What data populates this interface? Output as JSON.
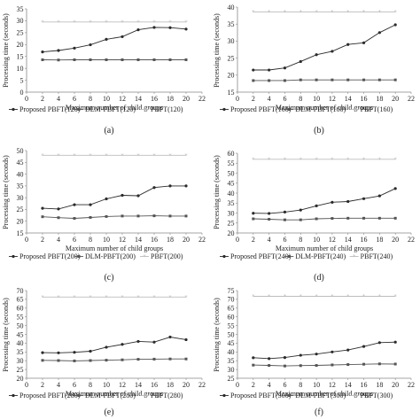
{
  "colors": {
    "proposed": "#2b2b2b",
    "dlm": "#555555",
    "pbft": "#bdbdbd",
    "axis": "#888888",
    "text": "#222222"
  },
  "chart_data": [
    {
      "type": "line",
      "caption": "(a)",
      "xlabel": "Maximum number of child groups",
      "ylabel": "Processing time (seconds)",
      "xlim": [
        0,
        22
      ],
      "ylim": [
        0,
        35
      ],
      "xticks": [
        0,
        2,
        4,
        6,
        8,
        10,
        12,
        14,
        16,
        18,
        20,
        22
      ],
      "yticks": [
        0,
        5,
        10,
        15,
        20,
        25,
        30,
        35
      ],
      "grid": false,
      "legend_position": "bottom",
      "x": [
        2,
        4,
        6,
        8,
        10,
        12,
        14,
        16,
        18,
        20
      ],
      "series": [
        {
          "name": "Proposed PBFT(120)",
          "values": [
            16.9,
            17.5,
            18.5,
            19.9,
            22.2,
            23.3,
            26.2,
            27.2,
            27.1,
            26.5
          ]
        },
        {
          "name": "DLM-PBFT(120)",
          "values": [
            13.6,
            13.5,
            13.6,
            13.6,
            13.6,
            13.6,
            13.6,
            13.6,
            13.6,
            13.6
          ]
        },
        {
          "name": "PBFT(120)",
          "values": [
            29.5,
            29.5,
            29.5,
            29.5,
            29.5,
            29.5,
            29.5,
            29.5,
            29.5,
            29.5
          ]
        }
      ]
    },
    {
      "type": "line",
      "caption": "(b)",
      "xlabel": "Maximum number of child groups",
      "ylabel": "Processing time (seconds)",
      "xlim": [
        0,
        22
      ],
      "ylim": [
        15,
        40
      ],
      "xticks": [
        0,
        2,
        4,
        6,
        8,
        10,
        12,
        14,
        16,
        18,
        20,
        22
      ],
      "yticks": [
        15,
        20,
        25,
        30,
        35,
        40
      ],
      "grid": false,
      "legend_position": "bottom",
      "x": [
        2,
        4,
        6,
        8,
        10,
        12,
        14,
        16,
        18,
        20
      ],
      "series": [
        {
          "name": "Proposed PBFT(160)",
          "values": [
            21.5,
            21.5,
            22.1,
            24.0,
            26.0,
            27.0,
            29.0,
            29.5,
            32.5,
            34.8
          ]
        },
        {
          "name": "DLM-PBFT(160)",
          "values": [
            18.4,
            18.4,
            18.4,
            18.6,
            18.6,
            18.6,
            18.6,
            18.6,
            18.6,
            18.6
          ]
        },
        {
          "name": "PBFT(160)",
          "values": [
            38.6,
            38.6,
            38.6,
            38.6,
            38.6,
            38.6,
            38.6,
            38.6,
            38.6,
            38.6
          ]
        }
      ]
    },
    {
      "type": "line",
      "caption": "(c)",
      "xlabel": "Maximum number of child groups",
      "ylabel": "Processing time (seconds)",
      "xlim": [
        0,
        22
      ],
      "ylim": [
        15,
        50
      ],
      "xticks": [
        0,
        2,
        4,
        6,
        8,
        10,
        12,
        14,
        16,
        18,
        20,
        22
      ],
      "yticks": [
        15,
        20,
        25,
        30,
        35,
        40,
        45,
        50
      ],
      "grid": false,
      "legend_position": "bottom",
      "x": [
        2,
        4,
        6,
        8,
        10,
        12,
        14,
        16,
        18,
        20
      ],
      "series": [
        {
          "name": "Proposed PBFT(200)",
          "values": [
            25.5,
            25.2,
            27.0,
            27.0,
            29.5,
            31.0,
            30.8,
            34.3,
            35.0,
            35.0
          ]
        },
        {
          "name": "DLM-PBFT(200)",
          "values": [
            21.9,
            21.5,
            21.2,
            21.6,
            22.0,
            22.2,
            22.2,
            22.3,
            22.2,
            22.2
          ]
        },
        {
          "name": "PBFT(200)",
          "values": [
            48.0,
            48.0,
            48.0,
            48.0,
            48.0,
            48.0,
            48.0,
            48.0,
            48.0,
            48.0
          ]
        }
      ]
    },
    {
      "type": "line",
      "caption": "(d)",
      "xlabel": "Maximum number of child groups",
      "ylabel": "Processing time (seconds)",
      "xlim": [
        0,
        22
      ],
      "ylim": [
        20,
        60
      ],
      "xticks": [
        0,
        2,
        4,
        6,
        8,
        10,
        12,
        14,
        16,
        18,
        20,
        22
      ],
      "yticks": [
        20,
        25,
        30,
        35,
        40,
        45,
        50,
        55,
        60
      ],
      "grid": false,
      "legend_position": "bottom",
      "x": [
        2,
        4,
        6,
        8,
        10,
        12,
        14,
        16,
        18,
        20
      ],
      "series": [
        {
          "name": "Proposed PBFT(240)",
          "values": [
            29.9,
            29.8,
            30.5,
            31.5,
            33.6,
            35.4,
            35.8,
            37.2,
            38.6,
            42.3
          ]
        },
        {
          "name": "DLM-PBFT(240)",
          "values": [
            27.1,
            26.9,
            26.6,
            26.6,
            27.1,
            27.3,
            27.4,
            27.4,
            27.4,
            27.4
          ]
        },
        {
          "name": "PBFT(240)",
          "values": [
            57.0,
            57.0,
            57.0,
            57.0,
            57.0,
            57.0,
            57.0,
            57.0,
            57.0,
            57.0
          ]
        }
      ]
    },
    {
      "type": "line",
      "caption": "(e)",
      "xlabel": "Maximum number of child groups",
      "ylabel": "Processing time (seconds)",
      "xlim": [
        0,
        22
      ],
      "ylim": [
        20,
        70
      ],
      "xticks": [
        0,
        2,
        4,
        6,
        8,
        10,
        12,
        14,
        16,
        18,
        20,
        22
      ],
      "yticks": [
        20,
        25,
        30,
        35,
        40,
        45,
        50,
        55,
        60,
        65,
        70
      ],
      "grid": false,
      "legend_position": "bottom",
      "x": [
        2,
        4,
        6,
        8,
        10,
        12,
        14,
        16,
        18,
        20
      ],
      "series": [
        {
          "name": "Proposed PBFT(280)",
          "values": [
            34.6,
            34.5,
            34.8,
            35.4,
            37.7,
            39.3,
            41.0,
            40.6,
            43.5,
            42.0
          ]
        },
        {
          "name": "DLM-PBFT(280)",
          "values": [
            30.2,
            30.1,
            29.9,
            30.1,
            30.3,
            30.5,
            30.8,
            30.9,
            31.0,
            31.0
          ]
        },
        {
          "name": "PBFT(280)",
          "values": [
            66.3,
            66.3,
            66.3,
            66.3,
            66.3,
            66.3,
            66.3,
            66.3,
            66.3,
            66.3
          ]
        }
      ]
    },
    {
      "type": "line",
      "caption": "(f)",
      "xlabel": "Maximum number of child groups",
      "ylabel": "Processing time (seconds)",
      "xlim": [
        0,
        22
      ],
      "ylim": [
        25,
        75
      ],
      "xticks": [
        0,
        2,
        4,
        6,
        8,
        10,
        12,
        14,
        16,
        18,
        20,
        22
      ],
      "yticks": [
        25,
        30,
        35,
        40,
        45,
        50,
        55,
        60,
        65,
        70,
        75
      ],
      "grid": false,
      "legend_position": "bottom",
      "x": [
        2,
        4,
        6,
        8,
        10,
        12,
        14,
        16,
        18,
        20
      ],
      "series": [
        {
          "name": "Proposed PBFT(300)",
          "values": [
            36.7,
            36.2,
            36.8,
            38.1,
            38.8,
            40.0,
            41.1,
            43.1,
            45.3,
            45.6
          ]
        },
        {
          "name": "DLM-PBFT(300)",
          "values": [
            32.5,
            32.3,
            32.0,
            32.2,
            32.3,
            32.6,
            32.8,
            33.0,
            33.2,
            33.1
          ]
        },
        {
          "name": "PBFT(300)",
          "values": [
            71.7,
            71.7,
            71.7,
            71.7,
            71.7,
            71.7,
            71.7,
            71.7,
            71.7,
            71.7
          ]
        }
      ]
    }
  ]
}
